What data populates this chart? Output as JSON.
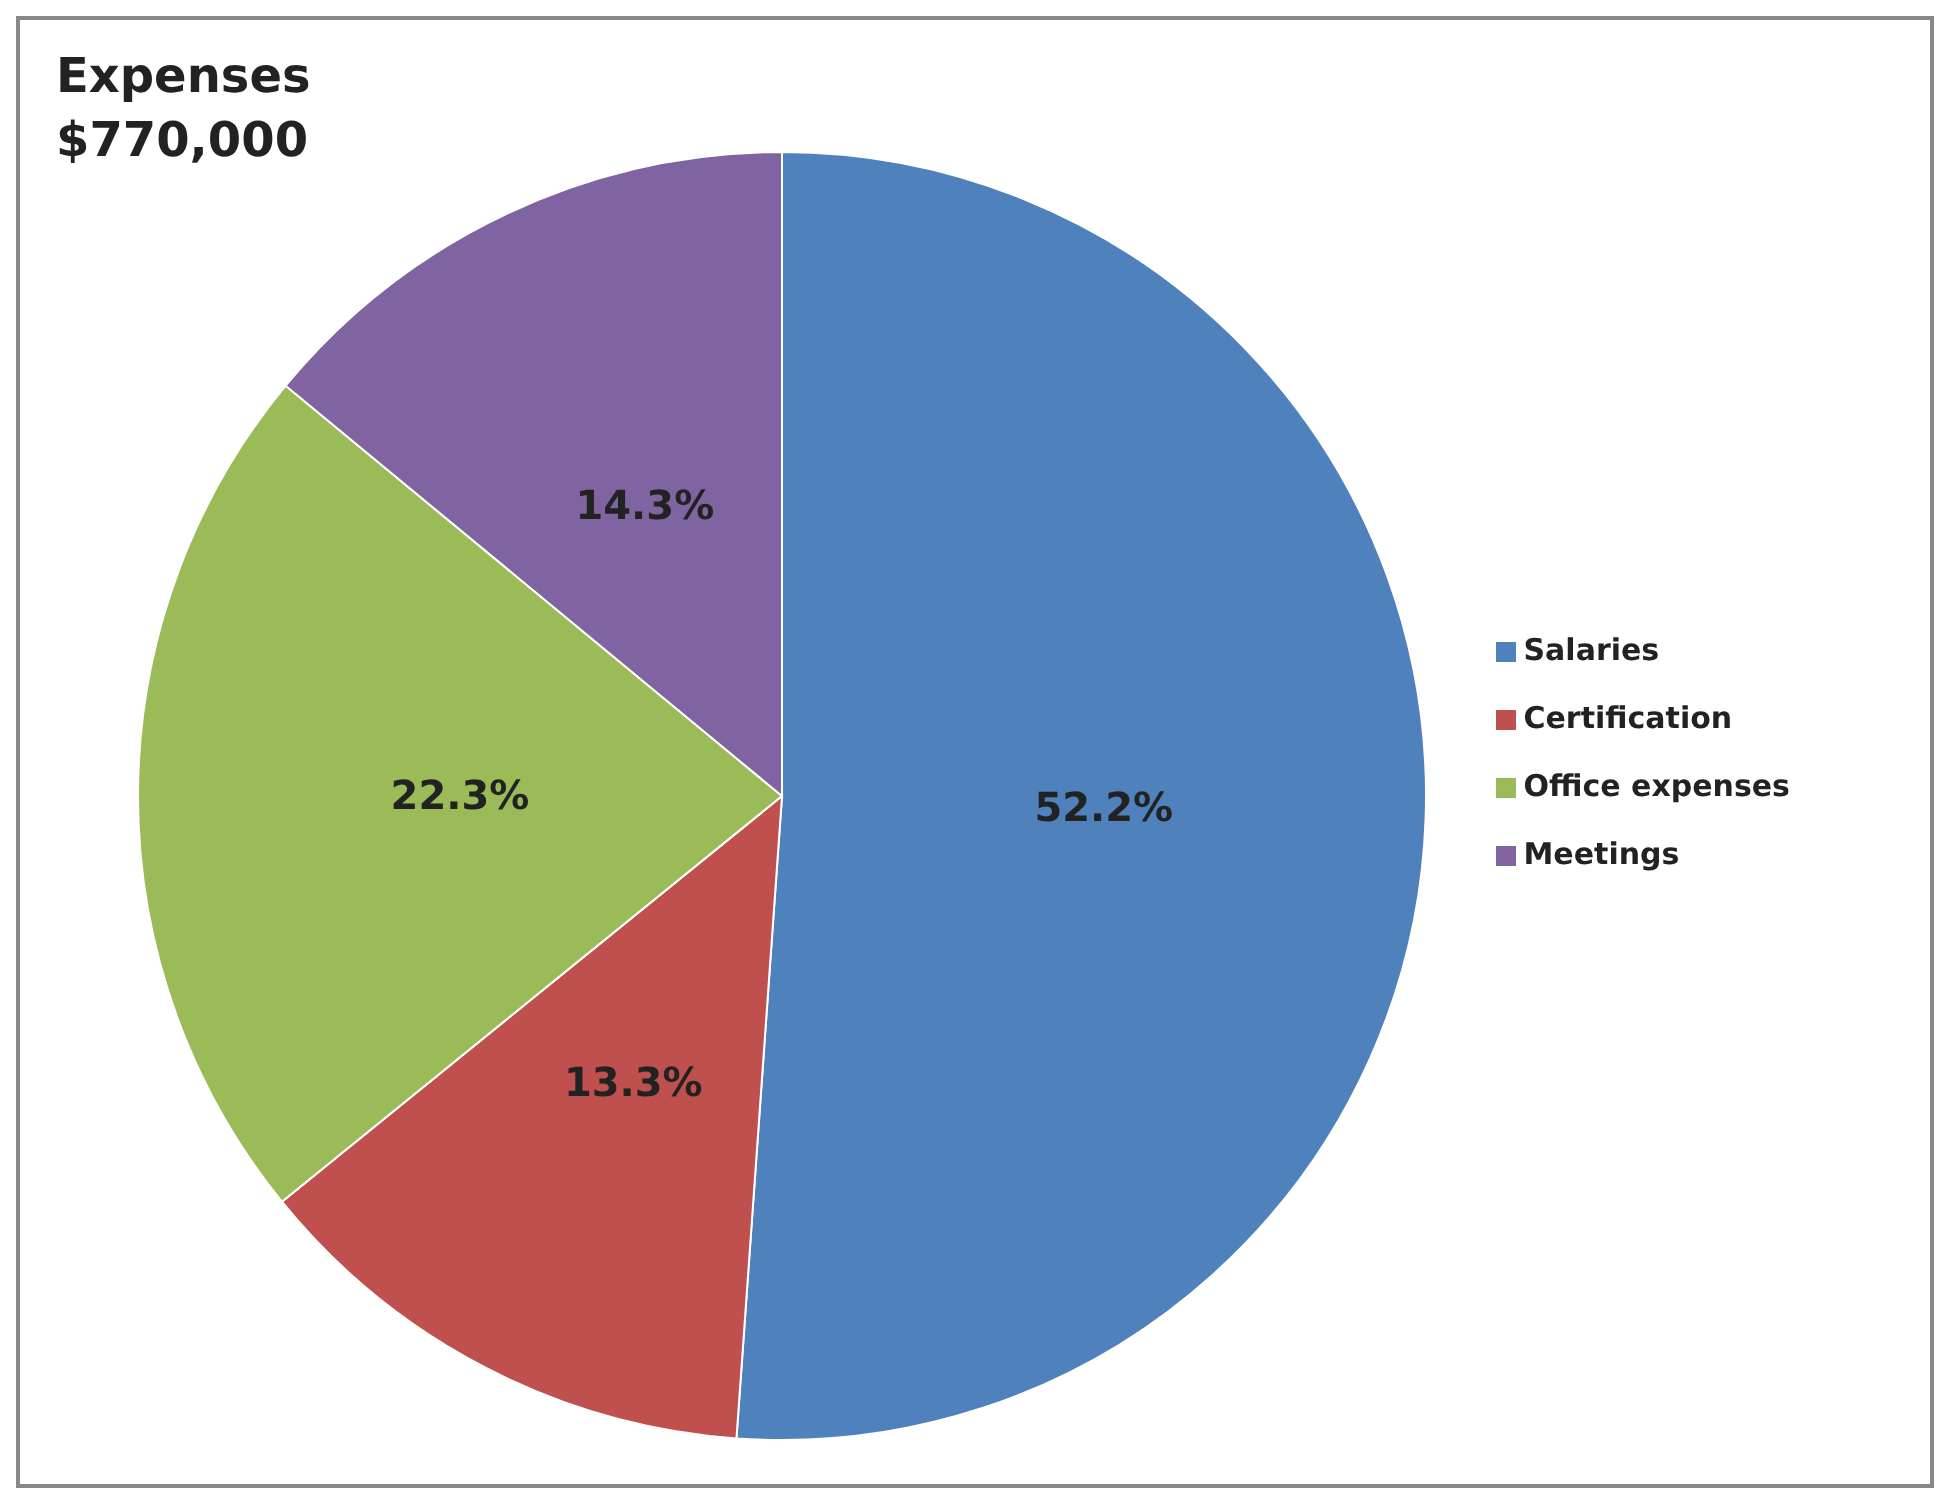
{
  "chart_data": {
    "type": "pie",
    "title": "Expenses",
    "subtitle": "$770,000",
    "categories": [
      "Salaries",
      "Certification",
      "Office expenses",
      "Meetings"
    ],
    "values": [
      52.2,
      13.3,
      22.3,
      14.3
    ],
    "colors": [
      "#4f81bd",
      "#c0504d",
      "#9bbb59",
      "#8064a2"
    ],
    "value_labels": [
      "52.2%",
      "13.3%",
      "22.3%",
      "14.3%"
    ],
    "legend": "right"
  }
}
